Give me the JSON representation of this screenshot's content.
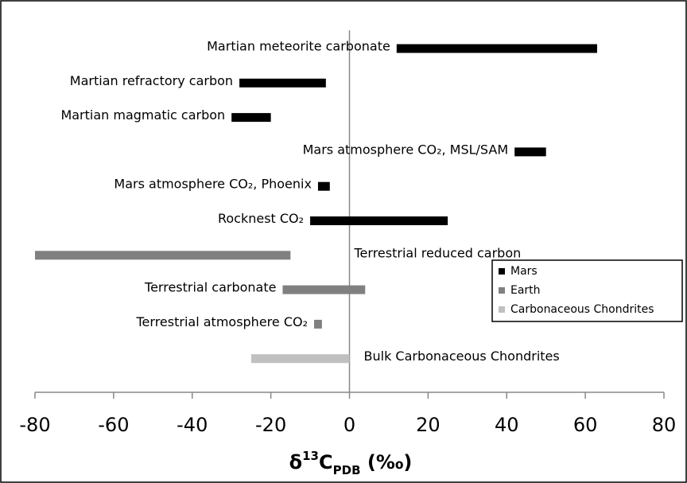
{
  "chart_data": {
    "type": "range-bar",
    "categories": [
      "Martian meteorite carbonate",
      "Martian refractory carbon",
      "Martian magmatic carbon",
      "Mars atmosphere CO₂, MSL/SAM",
      "Mars atmosphere CO₂, Phoenix",
      "Rocknest CO₂",
      "Terrestrial reduced carbon",
      "Terrestrial carbonate",
      "Terrestrial atmosphere CO₂",
      "Bulk Carbonaceous Chondrites"
    ],
    "series": [
      {
        "name": "Mars",
        "color": "#000000",
        "values": [
          [
            12,
            63
          ],
          [
            -28,
            -6
          ],
          [
            -30,
            -20
          ],
          [
            42,
            50
          ],
          [
            -8,
            -5
          ],
          [
            -10,
            25
          ],
          null,
          null,
          null,
          null
        ]
      },
      {
        "name": "Earth",
        "color": "#808080",
        "values": [
          null,
          null,
          null,
          null,
          null,
          null,
          [
            -80,
            -15
          ],
          [
            -17,
            4
          ],
          [
            -9,
            -7
          ],
          null
        ]
      },
      {
        "name": "Carbonaceous Chondrites",
        "color": "#c0c0c0",
        "values": [
          null,
          null,
          null,
          null,
          null,
          null,
          null,
          null,
          null,
          [
            -25,
            0
          ]
        ]
      }
    ],
    "xlabel": [
      "δ",
      "13",
      "C",
      "PDB",
      " (‰)"
    ],
    "xlim": [
      -80,
      80
    ],
    "xticks": [
      -80,
      -60,
      -40,
      -20,
      0,
      20,
      40,
      60,
      80
    ],
    "legend": "right"
  }
}
